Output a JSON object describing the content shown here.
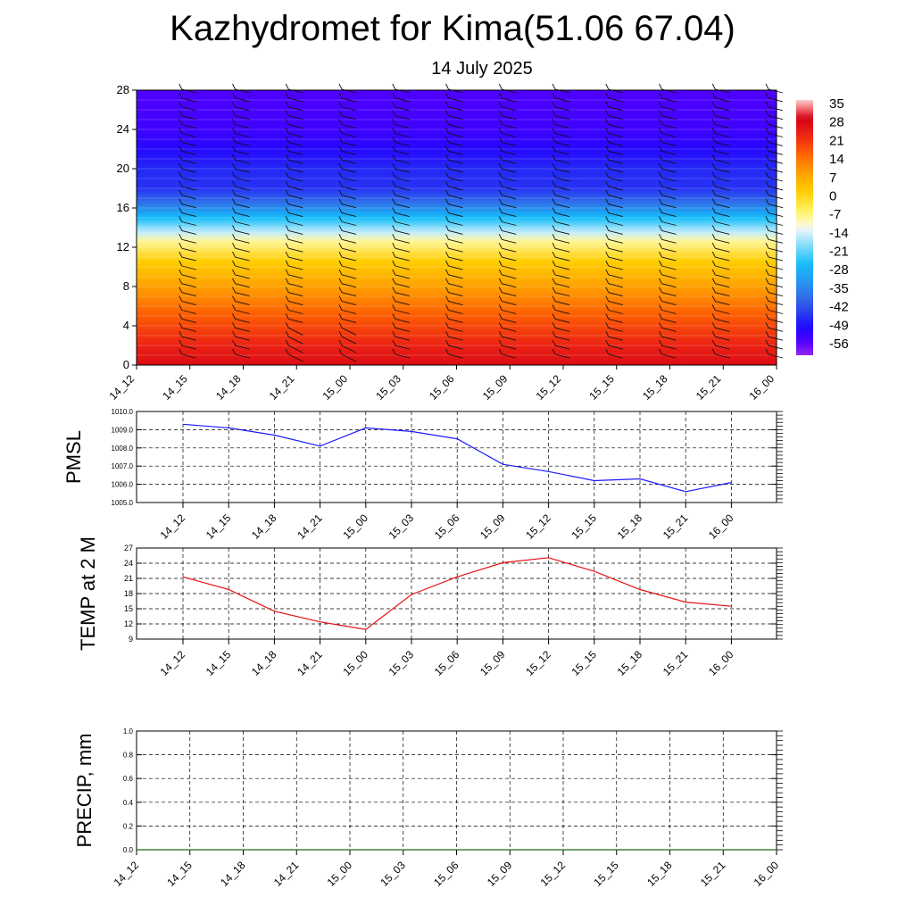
{
  "title": "Kazhydromet for Kima(51.06 67.04)",
  "subtitle": "14 July 2025",
  "colors": {
    "pmsl_line": "#1a1aff",
    "temp_line": "#e81010",
    "precip_line": "#1a6b1a",
    "grid": "#000000"
  },
  "chart_data": [
    {
      "type": "heatmap",
      "id": "temperature-profile",
      "x_ticks": [
        "14_12",
        "14_15",
        "14_18",
        "14_21",
        "15_00",
        "15_03",
        "15_06",
        "15_09",
        "15_12",
        "15_15",
        "15_18",
        "15_21",
        "16_00"
      ],
      "y_ticks": [
        "0",
        "4",
        "8",
        "12",
        "16",
        "20",
        "24",
        "28"
      ],
      "ylim": [
        0,
        28
      ],
      "colorbar_labels": [
        "35",
        "28",
        "21",
        "14",
        "7",
        "0",
        "-7",
        "-14",
        "-21",
        "-28",
        "-35",
        "-42",
        "-49",
        "-56"
      ],
      "colorbar_range": [
        -63,
        35
      ],
      "profile_by_height": [
        {
          "h": 0,
          "t": 26
        },
        {
          "h": 2,
          "t": 22
        },
        {
          "h": 5,
          "t": 15
        },
        {
          "h": 8,
          "t": 7
        },
        {
          "h": 10.5,
          "t": 0
        },
        {
          "h": 12.6,
          "t": -10
        },
        {
          "h": 13.5,
          "t": -17
        },
        {
          "h": 15,
          "t": -28
        },
        {
          "h": 16.5,
          "t": -40
        },
        {
          "h": 18,
          "t": -48
        },
        {
          "h": 20,
          "t": -49
        },
        {
          "h": 22,
          "t": -53
        },
        {
          "h": 24,
          "t": -56
        },
        {
          "h": 28,
          "t": -58
        }
      ],
      "wind_barbs": true
    },
    {
      "type": "line",
      "id": "pmsl",
      "ylabel": "PMSL",
      "x": [
        "14_12",
        "14_15",
        "14_18",
        "14_21",
        "15_00",
        "15_03",
        "15_06",
        "15_09",
        "15_12",
        "15_15",
        "15_18",
        "15_21",
        "16_00"
      ],
      "y_ticks": [
        "1005.0",
        "1006.0",
        "1007.0",
        "1008.0",
        "1009.0",
        "1010.0"
      ],
      "ylim": [
        1005,
        1010
      ],
      "series": [
        {
          "values": [
            1009.3,
            1009.1,
            1008.7,
            1008.1,
            1009.1,
            1008.9,
            1008.5,
            1007.1,
            1006.7,
            1006.2,
            1006.3,
            1005.6,
            1006.1
          ]
        }
      ],
      "grid": true
    },
    {
      "type": "line",
      "id": "temp",
      "ylabel": "TEMP at 2 M",
      "x": [
        "14_12",
        "14_15",
        "14_18",
        "14_21",
        "15_00",
        "15_03",
        "15_06",
        "15_09",
        "15_12",
        "15_15",
        "15_18",
        "15_21",
        "16_00"
      ],
      "y_ticks": [
        "9",
        "12",
        "15",
        "18",
        "21",
        "24",
        "27"
      ],
      "ylim": [
        9,
        27
      ],
      "series": [
        {
          "values": [
            21.3,
            18.8,
            14.5,
            12.4,
            10.9,
            17.8,
            21.3,
            24.1,
            25.1,
            22.4,
            18.8,
            16.3,
            15.5
          ]
        }
      ],
      "grid": true
    },
    {
      "type": "line",
      "id": "precip",
      "ylabel": "PRECIP, mm",
      "x_ticks": [
        "14_12",
        "14_15",
        "14_18",
        "14_21",
        "15_00",
        "15_03",
        "15_06",
        "15_09",
        "15_12",
        "15_15",
        "15_18",
        "15_21",
        "16_00"
      ],
      "y_ticks": [
        "0.0",
        "0.2",
        "0.4",
        "0.6",
        "0.8",
        "1.0"
      ],
      "ylim": [
        0,
        1
      ],
      "series": [
        {
          "values": [
            0,
            0,
            0,
            0,
            0,
            0,
            0,
            0,
            0,
            0,
            0,
            0,
            0
          ]
        }
      ],
      "grid": true
    }
  ]
}
